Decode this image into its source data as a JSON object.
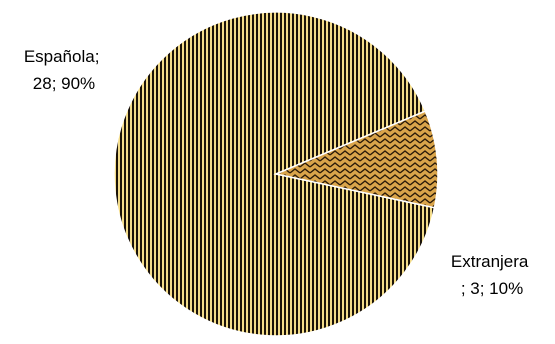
{
  "chart_data": {
    "type": "pie",
    "title": "",
    "slices": [
      {
        "category": "Española",
        "value": 28,
        "percent": 90,
        "label_lines": [
          "Española;",
          "28; 90%"
        ],
        "pattern_colors": [
          "#f3dc8a",
          "#1a1208"
        ]
      },
      {
        "category": "Extranjera",
        "value": 3,
        "percent": 10,
        "label_lines": [
          "Extranjera",
          "; 3; 10%"
        ],
        "pattern_colors": [
          "#d9a44a",
          "#2a1a08"
        ]
      }
    ],
    "legend": "none"
  }
}
